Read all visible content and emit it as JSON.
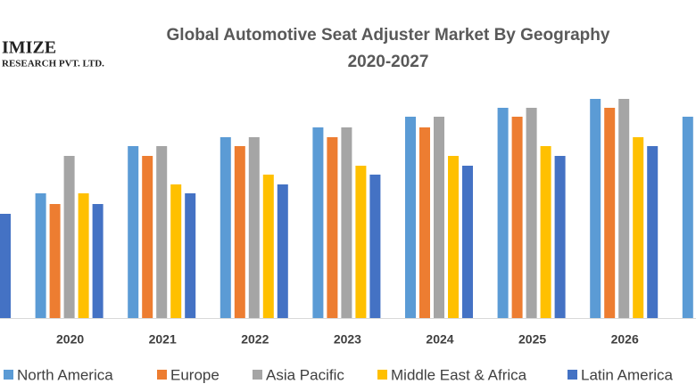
{
  "logo": {
    "name": "IMIZE",
    "tagline": "RESEARCH PVT. LTD."
  },
  "chart_data": {
    "type": "bar",
    "title": "Global Automotive Seat Adjuster Market By Geography",
    "subtitle": "2020-2027",
    "categories": [
      null,
      "2020",
      "2021",
      "2022",
      "2023",
      "2024",
      "2025",
      "2026",
      null
    ],
    "series": [
      {
        "name": "North America",
        "color": "#5b9bd5",
        "values": [
          null,
          140,
          193,
          203,
          214,
          226,
          236,
          246,
          226
        ]
      },
      {
        "name": "Europe",
        "color": "#ed7d31",
        "values": [
          null,
          128,
          182,
          193,
          203,
          214,
          226,
          236,
          null
        ]
      },
      {
        "name": "Asia Pacific",
        "color": "#a5a5a5",
        "values": [
          null,
          182,
          193,
          203,
          214,
          226,
          236,
          246,
          null
        ]
      },
      {
        "name": "Middle East & Africa",
        "color": "#ffc000",
        "values": [
          null,
          140,
          150,
          161,
          171,
          182,
          193,
          203,
          null
        ]
      },
      {
        "name": "Latin America",
        "color": "#4472c4",
        "values": [
          117,
          128,
          140,
          150,
          161,
          171,
          182,
          193,
          null
        ]
      }
    ]
  }
}
